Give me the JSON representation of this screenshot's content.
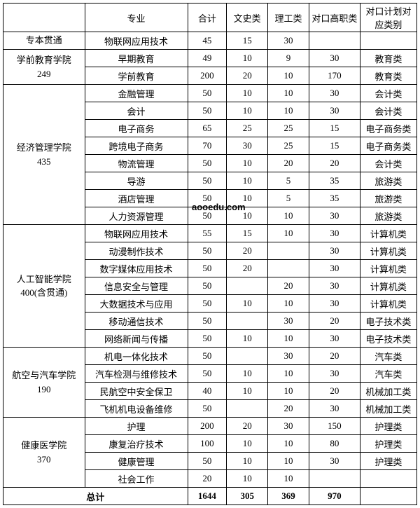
{
  "header": {
    "dept_col": "",
    "major": "专业",
    "total": "合计",
    "lib": "文史类",
    "sci": "理工类",
    "voc": "对口高职类",
    "plan": "对口计划对应类别"
  },
  "col_widths": {
    "c0": 115,
    "c1": 145,
    "c2": 55,
    "c3": 58,
    "c4": 58,
    "c5": 72,
    "c6": 80
  },
  "departments": [
    {
      "name_lines": [
        "专本贯通"
      ],
      "rows": [
        {
          "major": "物联网应用技术",
          "total": "45",
          "lib": "15",
          "sci": "30",
          "voc": "",
          "plan": ""
        }
      ]
    },
    {
      "name_lines": [
        "学前教育学院",
        "249"
      ],
      "rows": [
        {
          "major": "早期教育",
          "total": "49",
          "lib": "10",
          "sci": "9",
          "voc": "30",
          "plan": "教育类"
        },
        {
          "major": "学前教育",
          "total": "200",
          "lib": "20",
          "sci": "10",
          "voc": "170",
          "plan": "教育类"
        }
      ]
    },
    {
      "name_lines": [
        "经济管理学院",
        "435"
      ],
      "rows": [
        {
          "major": "金融管理",
          "total": "50",
          "lib": "10",
          "sci": "10",
          "voc": "30",
          "plan": "会计类"
        },
        {
          "major": "会计",
          "total": "50",
          "lib": "10",
          "sci": "10",
          "voc": "30",
          "plan": "会计类"
        },
        {
          "major": "电子商务",
          "total": "65",
          "lib": "25",
          "sci": "25",
          "voc": "15",
          "plan": "电子商务类"
        },
        {
          "major": "跨境电子商务",
          "total": "70",
          "lib": "30",
          "sci": "25",
          "voc": "15",
          "plan": "电子商务类"
        },
        {
          "major": "物流管理",
          "total": "50",
          "lib": "10",
          "sci": "20",
          "voc": "20",
          "plan": "会计类"
        },
        {
          "major": "导游",
          "total": "50",
          "lib": "10",
          "sci": "5",
          "voc": "35",
          "plan": "旅游类"
        },
        {
          "major": "酒店管理",
          "total": "50",
          "lib": "10",
          "sci": "5",
          "voc": "35",
          "plan": "旅游类"
        },
        {
          "major": "人力资源管理",
          "total": "50",
          "lib": "10",
          "sci": "10",
          "voc": "30",
          "plan": "旅游类"
        }
      ]
    },
    {
      "name_lines": [
        "人工智能学院",
        "400(含贯通)"
      ],
      "rows": [
        {
          "major": "物联网应用技术",
          "total": "55",
          "lib": "15",
          "sci": "10",
          "voc": "30",
          "plan": "计算机类"
        },
        {
          "major": "动漫制作技术",
          "total": "50",
          "lib": "20",
          "sci": "",
          "voc": "30",
          "plan": "计算机类"
        },
        {
          "major": "数字媒体应用技术",
          "total": "50",
          "lib": "20",
          "sci": "",
          "voc": "30",
          "plan": "计算机类"
        },
        {
          "major": "信息安全与管理",
          "total": "50",
          "lib": "",
          "sci": "20",
          "voc": "30",
          "plan": "计算机类"
        },
        {
          "major": "大数据技术与应用",
          "total": "50",
          "lib": "10",
          "sci": "10",
          "voc": "30",
          "plan": "计算机类"
        },
        {
          "major": "移动通信技术",
          "total": "50",
          "lib": "",
          "sci": "30",
          "voc": "20",
          "plan": "电子技术类"
        },
        {
          "major": "网络新闻与传播",
          "total": "50",
          "lib": "10",
          "sci": "10",
          "voc": "30",
          "plan": "电子技术类"
        }
      ]
    },
    {
      "name_lines": [
        "航空与汽车学院",
        "190"
      ],
      "rows": [
        {
          "major": "机电一体化技术",
          "total": "50",
          "lib": "",
          "sci": "30",
          "voc": "20",
          "plan": "汽车类"
        },
        {
          "major": "汽车检测与维修技术",
          "total": "50",
          "lib": "10",
          "sci": "10",
          "voc": "30",
          "plan": "汽车类"
        },
        {
          "major": "民航空中安全保卫",
          "total": "40",
          "lib": "10",
          "sci": "10",
          "voc": "20",
          "plan": "机械加工类"
        },
        {
          "major": "飞机机电设备维修",
          "total": "50",
          "lib": "",
          "sci": "20",
          "voc": "30",
          "plan": "机械加工类"
        }
      ]
    },
    {
      "name_lines": [
        "健康医学院",
        "370"
      ],
      "rows": [
        {
          "major": "护理",
          "total": "200",
          "lib": "20",
          "sci": "30",
          "voc": "150",
          "plan": "护理类"
        },
        {
          "major": "康复治疗技术",
          "total": "100",
          "lib": "10",
          "sci": "10",
          "voc": "80",
          "plan": "护理类"
        },
        {
          "major": "健康管理",
          "total": "50",
          "lib": "10",
          "sci": "10",
          "voc": "30",
          "plan": "护理类"
        },
        {
          "major": "社会工作",
          "total": "20",
          "lib": "10",
          "sci": "10",
          "voc": "",
          "plan": ""
        }
      ]
    }
  ],
  "footer": {
    "label": "总计",
    "total": "1644",
    "lib": "305",
    "sci": "369",
    "voc": "970",
    "plan": ""
  },
  "watermark": "aooedu.com"
}
